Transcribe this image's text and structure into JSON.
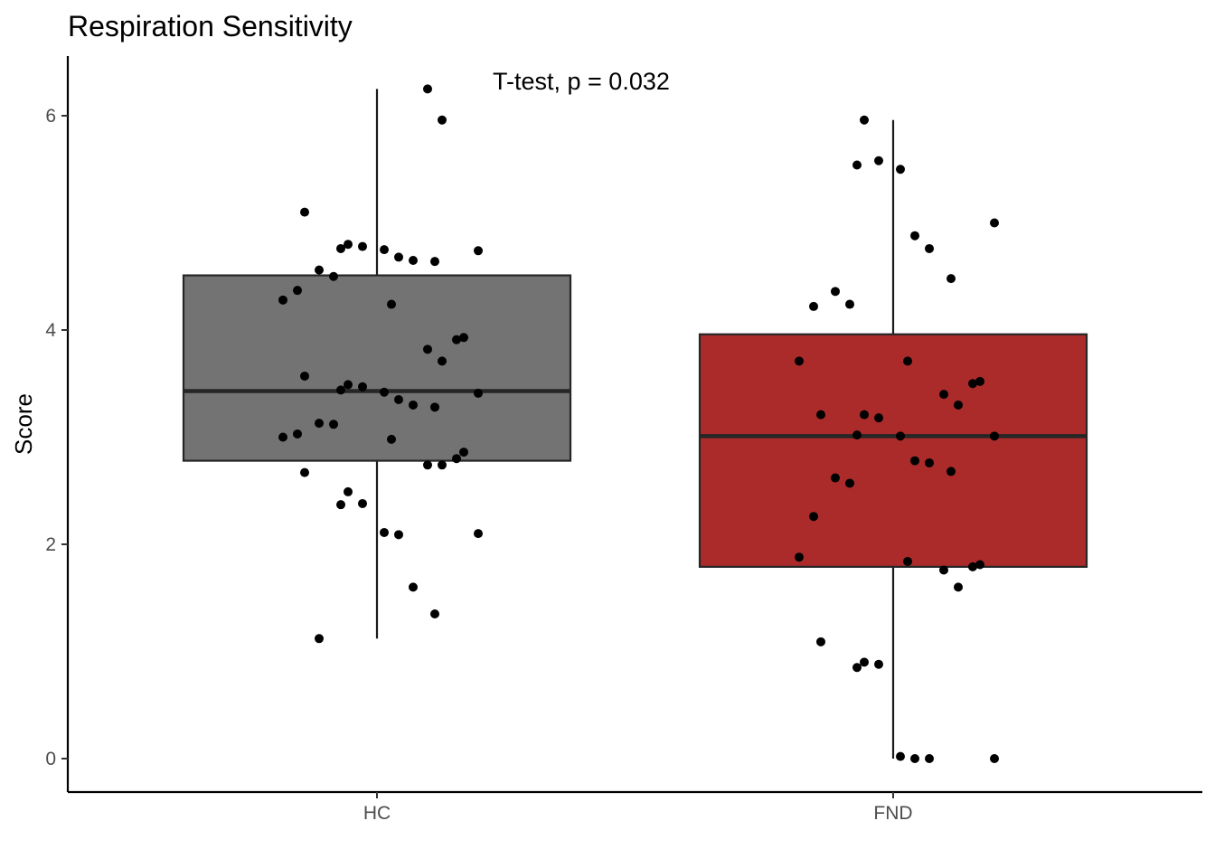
{
  "chart_data": {
    "type": "boxplot",
    "title": "Respiration Sensitivity",
    "xlabel": "",
    "ylabel": "Score",
    "ylim": [
      -0.3,
      6.55
    ],
    "y_ticks": [
      0,
      2,
      4,
      6
    ],
    "grid": false,
    "legend": "none",
    "categories": [
      "HC",
      "FND"
    ],
    "annotation": "T-test, p = 0.032",
    "groups": [
      {
        "category": "HC",
        "fill": "#737373",
        "box": {
          "min": 1.12,
          "q1": 2.78,
          "median": 3.43,
          "q3": 4.51,
          "max": 6.25
        },
        "points": [
          6.25,
          5.96,
          5.1,
          4.8,
          4.78,
          4.76,
          4.75,
          4.74,
          4.68,
          4.65,
          4.64,
          4.56,
          4.5,
          4.37,
          4.28,
          4.24,
          3.93,
          3.91,
          3.82,
          3.71,
          3.57,
          3.49,
          3.47,
          3.44,
          3.42,
          3.41,
          3.35,
          3.3,
          3.28,
          3.13,
          3.12,
          3.03,
          3.0,
          2.98,
          2.86,
          2.8,
          2.74,
          2.74,
          2.67,
          2.49,
          2.38,
          2.37,
          2.11,
          2.1,
          2.09,
          1.6,
          1.35,
          1.12
        ]
      },
      {
        "category": "FND",
        "fill": "#ab2b2b",
        "box": {
          "min": 0.0,
          "q1": 1.79,
          "median": 3.01,
          "q3": 3.96,
          "max": 5.96
        },
        "points": [
          5.96,
          5.58,
          5.54,
          5.5,
          5.0,
          4.88,
          4.76,
          4.48,
          4.36,
          4.24,
          4.22,
          3.71,
          3.71,
          3.52,
          3.5,
          3.4,
          3.3,
          3.21,
          3.21,
          3.18,
          3.02,
          3.01,
          3.01,
          2.78,
          2.76,
          2.68,
          2.62,
          2.57,
          2.26,
          1.88,
          1.84,
          1.81,
          1.79,
          1.76,
          1.6,
          1.09,
          0.9,
          0.88,
          0.85,
          0.02,
          0.0,
          0.0,
          0.0
        ]
      }
    ]
  }
}
